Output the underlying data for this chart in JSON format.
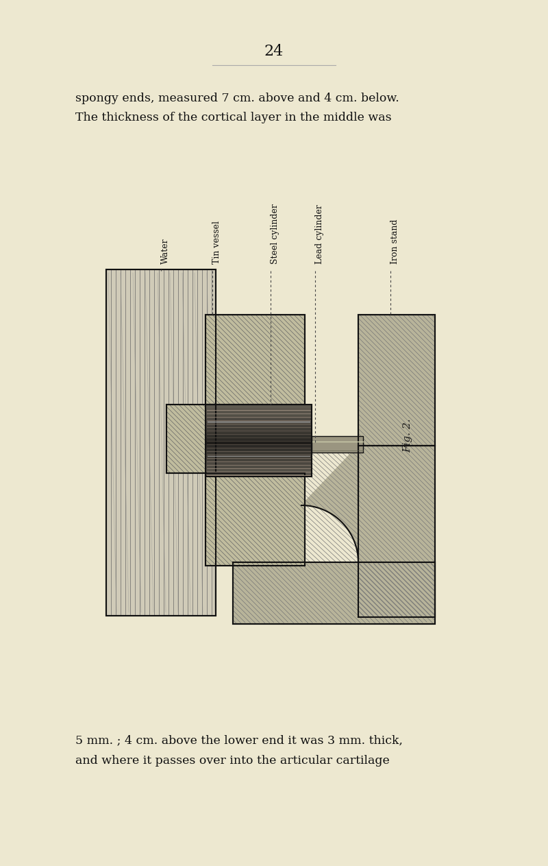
{
  "background_color": "#ede8d0",
  "page_number": "24",
  "top_text_line1": "spongy ends, measured 7 cm. above and 4 cm. below.",
  "top_text_line2": "The thickness of the cortical layer in the middle was",
  "bottom_text_line1": "5 mm. ; 4 cm. above the lower end it was 3 mm. thick,",
  "bottom_text_line2": "and where it passes over into the articular cartilage",
  "fig_label": "Fig. 2.",
  "labels": [
    "Water",
    "Tin vessel",
    "Steel cylinder",
    "Lead cylinder",
    "Iron stand"
  ],
  "text_color": "#111111",
  "line_color": "#111111",
  "hatch_gray": "#888888",
  "iron_fill": "#b8b49a",
  "tin_fill": "#c0bc9e",
  "water_fill": "#d0cbb8"
}
